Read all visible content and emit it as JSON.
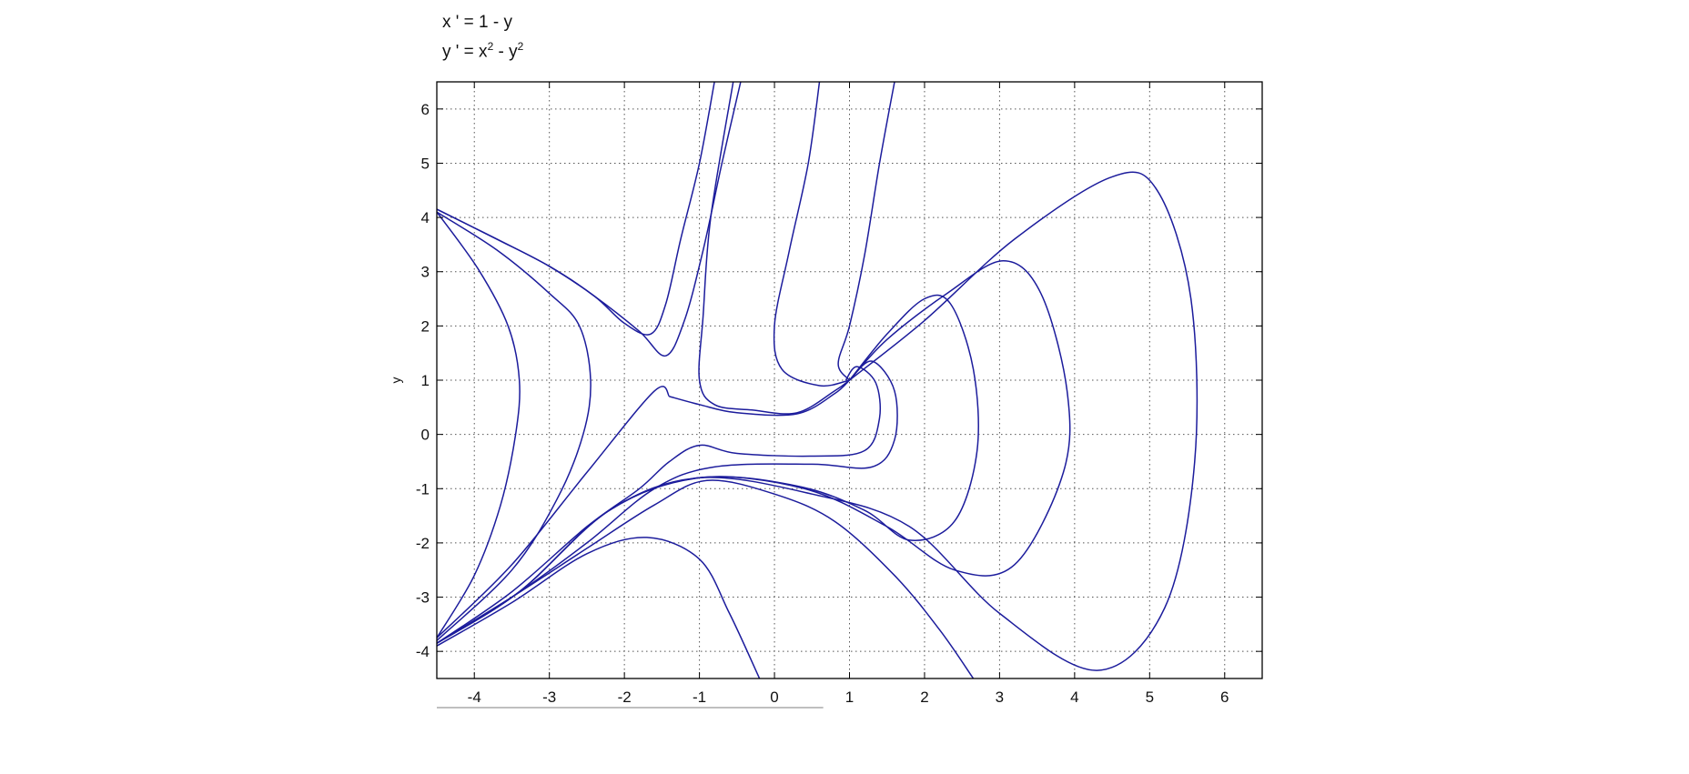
{
  "title_lines": {
    "line1": "x ' = 1 - y",
    "line2_base": "y ' = x",
    "line2_exp1": "2",
    "line2_mid": " - y",
    "line2_exp2": "2"
  },
  "ylabel": "y",
  "colors": {
    "curve": "#1c1c9c",
    "axis": "#000000",
    "grid": "#555555",
    "background": "#ffffff"
  },
  "chart_data": {
    "type": "line",
    "title": "x ' = 1 - y ; y ' = x^2 - y^2",
    "xlabel": "",
    "ylabel": "y",
    "xlim": [
      -4.5,
      6.5
    ],
    "ylim": [
      -4.5,
      6.5
    ],
    "xticks": [
      -4,
      -3,
      -2,
      -1,
      0,
      1,
      2,
      3,
      4,
      5,
      6
    ],
    "yticks": [
      -4,
      -3,
      -2,
      -1,
      0,
      1,
      2,
      3,
      4,
      5,
      6
    ],
    "xtick_labels": [
      "-4",
      "-3",
      "-2",
      "-1",
      "0",
      "1",
      "2",
      "3",
      "4",
      "5",
      "6"
    ],
    "ytick_labels": [
      "-4",
      "-3",
      "-2",
      "-1",
      "0",
      "1",
      "2",
      "3",
      "4",
      "5",
      "6"
    ],
    "grid": true,
    "series": [
      {
        "values": [
          [
            -4.5,
            4.15
          ],
          [
            -3.7,
            3.6
          ],
          [
            -3.0,
            3.1
          ],
          [
            -2.4,
            2.55
          ],
          [
            -2.0,
            2.05
          ],
          [
            -1.65,
            1.85
          ],
          [
            -1.45,
            2.4
          ],
          [
            -1.25,
            3.6
          ],
          [
            -1.0,
            5.0
          ],
          [
            -0.8,
            6.5
          ]
        ]
      },
      {
        "values": [
          [
            -4.5,
            4.15
          ],
          [
            -3.7,
            3.6
          ],
          [
            -3.0,
            3.1
          ],
          [
            -2.4,
            2.55
          ],
          [
            -1.8,
            1.9
          ],
          [
            -1.45,
            1.45
          ],
          [
            -1.2,
            2.1
          ],
          [
            -0.95,
            3.4
          ],
          [
            -0.7,
            5.0
          ],
          [
            -0.45,
            6.5
          ]
        ]
      },
      {
        "values": [
          [
            -4.5,
            4.1
          ],
          [
            -3.95,
            3.05
          ],
          [
            -3.55,
            2.0
          ],
          [
            -3.4,
            1.0
          ],
          [
            -3.45,
            0.0
          ],
          [
            -3.65,
            -1.3
          ],
          [
            -4.0,
            -2.6
          ],
          [
            -4.5,
            -3.75
          ]
        ]
      },
      {
        "values": [
          [
            -4.5,
            4.1
          ],
          [
            -3.7,
            3.4
          ],
          [
            -3.0,
            2.6
          ],
          [
            -2.6,
            2.0
          ],
          [
            -2.45,
            1.0
          ],
          [
            -2.55,
            0.0
          ],
          [
            -2.9,
            -1.2
          ],
          [
            -3.5,
            -2.5
          ],
          [
            -4.5,
            -3.8
          ]
        ]
      },
      {
        "values": [
          [
            -4.5,
            -3.85
          ],
          [
            -3.5,
            -3.0
          ],
          [
            -2.5,
            -2.1
          ],
          [
            -1.6,
            -1.3
          ],
          [
            -0.9,
            -0.85
          ],
          [
            0.0,
            -1.1
          ],
          [
            0.8,
            -1.6
          ],
          [
            1.6,
            -2.6
          ],
          [
            2.2,
            -3.6
          ],
          [
            2.65,
            -4.5
          ]
        ]
      },
      {
        "values": [
          [
            -4.5,
            -3.9
          ],
          [
            -3.5,
            -3.1
          ],
          [
            -2.5,
            -2.2
          ],
          [
            -1.7,
            -1.9
          ],
          [
            -1.0,
            -2.3
          ],
          [
            -0.6,
            -3.3
          ],
          [
            -0.2,
            -4.5
          ]
        ]
      },
      {
        "values": [
          [
            -4.5,
            -3.85
          ],
          [
            -3.5,
            -2.9
          ],
          [
            -2.5,
            -1.7
          ],
          [
            -1.8,
            -1.0
          ],
          [
            -1.4,
            -0.5
          ],
          [
            -1.0,
            -0.2
          ],
          [
            -0.5,
            -0.35
          ],
          [
            0.5,
            -0.4
          ],
          [
            1.2,
            -0.3
          ],
          [
            1.4,
            0.3
          ],
          [
            1.35,
            0.95
          ],
          [
            1.1,
            1.25
          ],
          [
            0.95,
            1.0
          ]
        ]
      },
      {
        "values": [
          [
            -4.5,
            -3.85
          ],
          [
            -3.5,
            -3.0
          ],
          [
            -2.5,
            -2.0
          ],
          [
            -1.6,
            -1.0
          ],
          [
            -0.8,
            -0.6
          ],
          [
            0.5,
            -0.55
          ],
          [
            1.3,
            -0.6
          ],
          [
            1.6,
            -0.1
          ],
          [
            1.6,
            0.8
          ],
          [
            1.3,
            1.35
          ],
          [
            1.0,
            1.0
          ]
        ]
      },
      {
        "values": [
          [
            -4.5,
            -3.85
          ],
          [
            -3.4,
            -2.9
          ],
          [
            -2.2,
            -1.4
          ],
          [
            -1.0,
            -0.8
          ],
          [
            0.3,
            -0.95
          ],
          [
            1.2,
            -1.4
          ],
          [
            1.8,
            -1.95
          ],
          [
            2.4,
            -1.6
          ],
          [
            2.7,
            -0.3
          ],
          [
            2.65,
            1.2
          ],
          [
            2.35,
            2.4
          ],
          [
            2.0,
            2.5
          ],
          [
            1.5,
            1.85
          ],
          [
            1.0,
            1.0
          ]
        ]
      },
      {
        "values": [
          [
            -4.5,
            -3.85
          ],
          [
            -3.4,
            -2.9
          ],
          [
            -2.2,
            -1.4
          ],
          [
            -1.0,
            -0.8
          ],
          [
            0.4,
            -1.0
          ],
          [
            1.5,
            -1.7
          ],
          [
            2.4,
            -2.5
          ],
          [
            3.2,
            -2.4
          ],
          [
            3.85,
            -0.7
          ],
          [
            3.9,
            0.8
          ],
          [
            3.55,
            2.6
          ],
          [
            3.05,
            3.2
          ],
          [
            2.3,
            2.6
          ],
          [
            1.5,
            1.75
          ],
          [
            1.0,
            1.0
          ]
        ]
      },
      {
        "values": [
          [
            -4.5,
            -3.85
          ],
          [
            -3.4,
            -2.9
          ],
          [
            -2.2,
            -1.4
          ],
          [
            -1.0,
            -0.8
          ],
          [
            0.5,
            -1.1
          ],
          [
            1.8,
            -1.7
          ],
          [
            3.0,
            -3.3
          ],
          [
            4.3,
            -4.35
          ],
          [
            5.2,
            -3.2
          ],
          [
            5.6,
            -0.5
          ],
          [
            5.55,
            2.5
          ],
          [
            5.1,
            4.5
          ],
          [
            4.5,
            4.75
          ],
          [
            3.2,
            3.6
          ],
          [
            2.0,
            2.1
          ],
          [
            1.0,
            1.0
          ]
        ]
      },
      {
        "values": [
          [
            -1.4,
            0.7
          ],
          [
            -1.0,
            0.55
          ],
          [
            -0.5,
            0.4
          ],
          [
            0.3,
            0.38
          ],
          [
            0.8,
            0.75
          ],
          [
            1.0,
            1.0
          ]
        ]
      },
      {
        "values": [
          [
            -1.4,
            0.7
          ],
          [
            -1.6,
            0.8
          ],
          [
            -2.5,
            -0.7
          ],
          [
            -3.5,
            -2.4
          ],
          [
            -4.5,
            -3.75
          ]
        ]
      },
      {
        "values": [
          [
            -0.55,
            6.5
          ],
          [
            -0.85,
            4.0
          ],
          [
            -0.95,
            2.2
          ],
          [
            -1.0,
            1.0
          ],
          [
            -0.8,
            0.55
          ],
          [
            -0.3,
            0.45
          ],
          [
            0.3,
            0.4
          ],
          [
            0.8,
            0.8
          ],
          [
            1.0,
            1.0
          ]
        ]
      },
      {
        "values": [
          [
            0.6,
            6.5
          ],
          [
            0.45,
            5.0
          ],
          [
            0.2,
            3.4
          ],
          [
            0.0,
            2.0
          ],
          [
            0.1,
            1.2
          ],
          [
            0.6,
            0.9
          ],
          [
            1.0,
            1.0
          ]
        ]
      },
      {
        "values": [
          [
            1.6,
            6.5
          ],
          [
            1.4,
            5.0
          ],
          [
            1.2,
            3.3
          ],
          [
            1.0,
            2.0
          ],
          [
            0.85,
            1.3
          ],
          [
            1.0,
            1.0
          ]
        ]
      }
    ]
  }
}
